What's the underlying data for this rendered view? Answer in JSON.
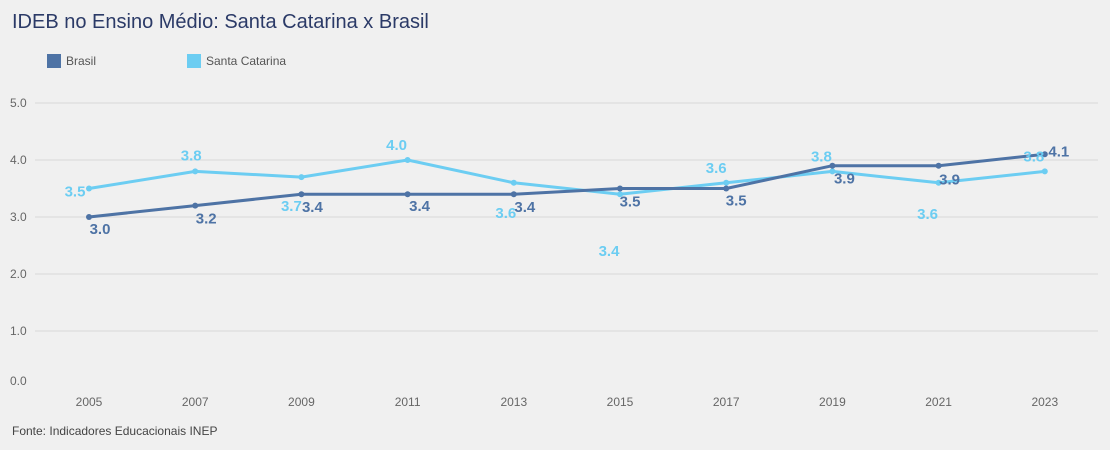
{
  "title": "IDEB no Ensino Médio: Santa Catarina x Brasil",
  "source": "Fonte: Indicadores Educacionais INEP",
  "colors": {
    "brasil": "#4e73a5",
    "santa_catarina": "#6ccdf2",
    "grid": "#d8d8d8"
  },
  "legend": [
    {
      "label": "Brasil",
      "color": "#4e73a5"
    },
    {
      "label": "Santa Catarina",
      "color": "#6ccdf2"
    }
  ],
  "chart_data": {
    "type": "line",
    "title": "IDEB no Ensino Médio: Santa Catarina x Brasil",
    "xlabel": "",
    "ylabel": "",
    "x": [
      "2005",
      "2007",
      "2009",
      "2011",
      "2013",
      "2015",
      "2017",
      "2019",
      "2021",
      "2023"
    ],
    "ylim": [
      0,
      5
    ],
    "yticks": [
      "0.0",
      "1.0",
      "2.0",
      "3.0",
      "4.0",
      "5.0"
    ],
    "grid": true,
    "legend_position": "top-left",
    "series": [
      {
        "name": "Brasil",
        "values": [
          3.0,
          3.2,
          3.4,
          3.4,
          3.4,
          3.5,
          3.5,
          3.9,
          3.9,
          4.1
        ],
        "labels": [
          "3.0",
          "3.2",
          "3.4",
          "3.4",
          "3.4",
          "3.5",
          "3.5",
          "3.9",
          "3.9",
          "4.1"
        ]
      },
      {
        "name": "Santa Catarina",
        "values": [
          3.5,
          3.8,
          3.7,
          4.0,
          3.6,
          3.4,
          3.6,
          3.8,
          3.6,
          3.8
        ],
        "labels": [
          "3.5",
          "3.8",
          "3.7",
          "4.0",
          "3.6",
          "3.4",
          "3.6",
          "3.8",
          "3.6",
          "3.8"
        ]
      }
    ]
  }
}
